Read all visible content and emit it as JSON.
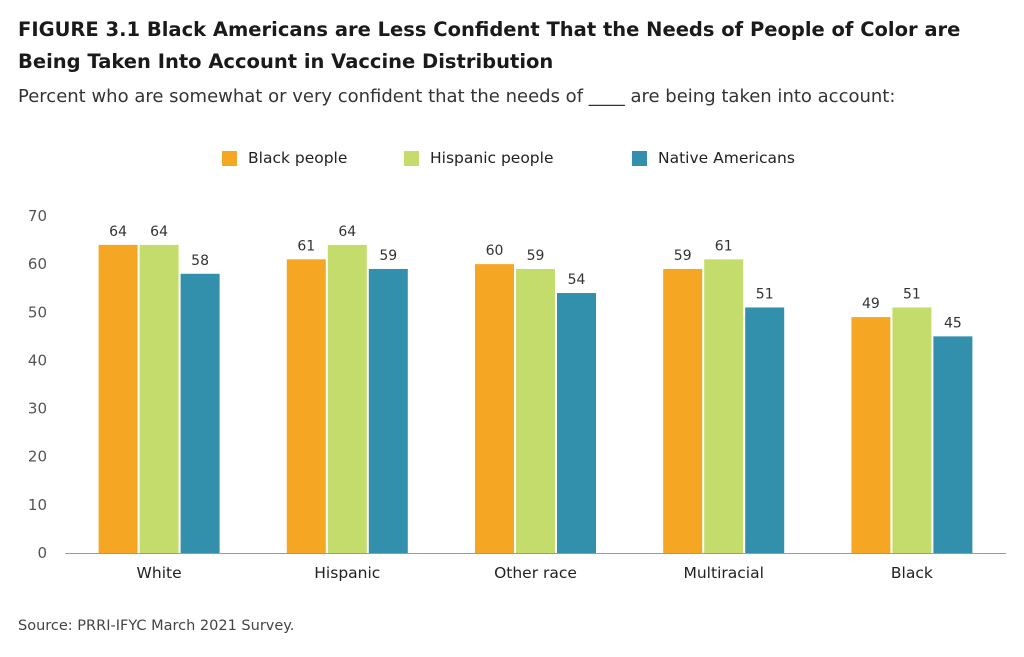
{
  "figure": {
    "title": "FIGURE 3.1  Black Americans are Less Confident That the Needs of People of Color are Being Taken Into Account in Vaccine Distribution",
    "subtitle": "Percent who are somewhat or very confident that the needs of ____ are being taken into account:",
    "source": "Source: PRRI-IFYC March 2021 Survey."
  },
  "colors": {
    "black_people": "#f5a623",
    "hispanic_people": "#c4dc6c",
    "native_americans": "#3390ad"
  },
  "chart_data": {
    "type": "bar",
    "title": "FIGURE 3.1  Black Americans are Less Confident That the Needs of People of Color are Being Taken Into Account in Vaccine Distribution",
    "subtitle": "Percent who are somewhat or very confident that the needs of ____ are being taken into account:",
    "categories": [
      "White",
      "Hispanic",
      "Other race",
      "Multiracial",
      "Black"
    ],
    "series": [
      {
        "name": "Black people",
        "color": "#f5a623",
        "values": [
          64,
          61,
          60,
          59,
          49
        ]
      },
      {
        "name": "Hispanic people",
        "color": "#c4dc6c",
        "values": [
          64,
          64,
          59,
          61,
          51
        ]
      },
      {
        "name": "Native Americans",
        "color": "#3390ad",
        "values": [
          58,
          59,
          54,
          51,
          45
        ]
      }
    ],
    "ylim": [
      0,
      70
    ],
    "yticks": [
      0,
      10,
      20,
      30,
      40,
      50,
      60,
      70
    ],
    "xlabel": "",
    "ylabel": "",
    "grid": false,
    "legend_position": "top-center",
    "data_labels": true
  }
}
